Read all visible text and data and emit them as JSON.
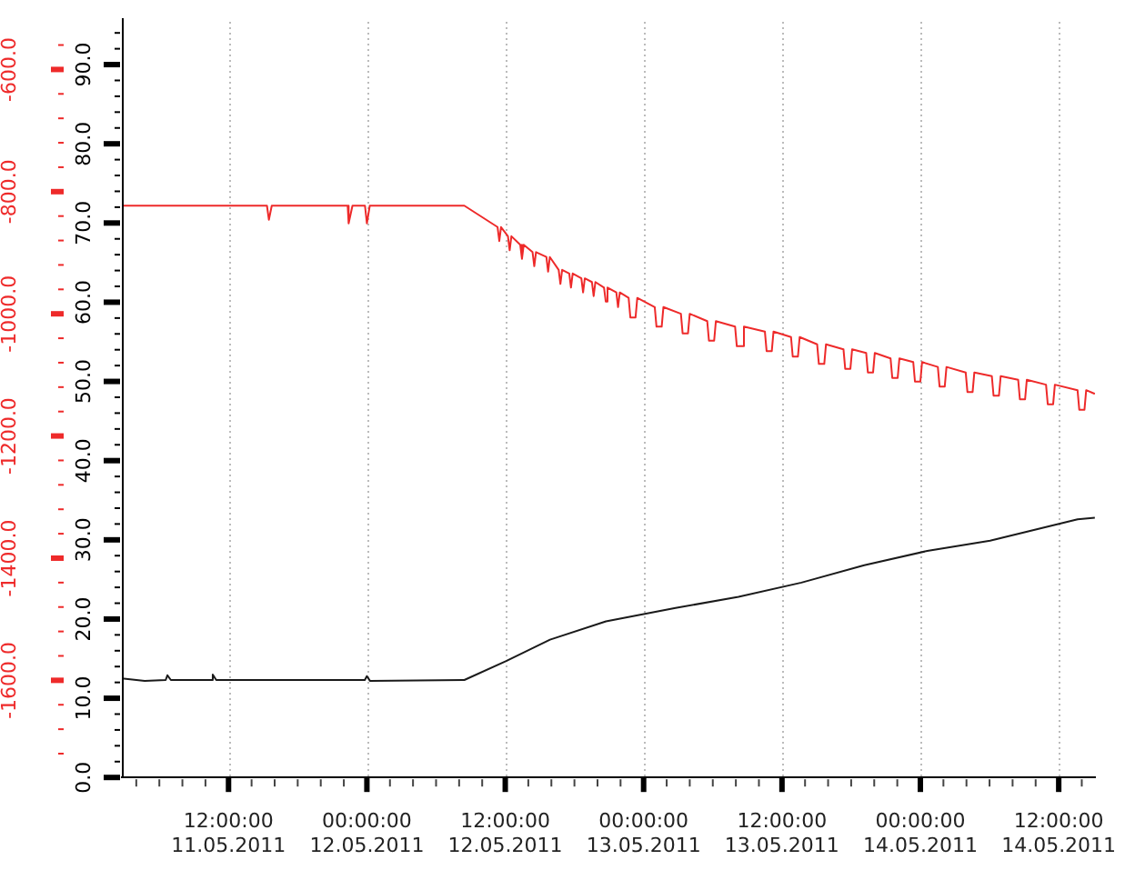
{
  "chart_data": {
    "type": "line",
    "xlim": [
      "2011-05-11T02:45",
      "2011-05-14T15:10"
    ],
    "xticks": [
      {
        "value": "2011-05-11T12:00",
        "label": "12:00:00 11.05.2011"
      },
      {
        "value": "2011-05-12T00:00",
        "label": "00:00:00 12.05.2011"
      },
      {
        "value": "2011-05-12T12:00",
        "label": "12:00:00 12.05.2011"
      },
      {
        "value": "2011-05-13T00:00",
        "label": "00:00:00 13.05.2011"
      },
      {
        "value": "2011-05-13T12:00",
        "label": "12:00:00 13.05.2011"
      },
      {
        "value": "2011-05-14T00:00",
        "label": "00:00:00 14.05.2011"
      },
      {
        "value": "2011-05-14T12:00",
        "label": "12:00:00 14.05.2011"
      }
    ],
    "ylim": [
      0,
      95.4
    ],
    "yticks": [
      {
        "value": 0,
        "label": "0.0"
      },
      {
        "value": 10,
        "label": "10.0"
      },
      {
        "value": 20,
        "label": "20.0"
      },
      {
        "value": 30,
        "label": "30.0"
      },
      {
        "value": 40,
        "label": "40.0"
      },
      {
        "value": 50,
        "label": "50.0"
      },
      {
        "value": 60,
        "label": "60.0"
      },
      {
        "value": 70,
        "label": "70.0"
      },
      {
        "value": 80,
        "label": "80.0"
      },
      {
        "value": 90,
        "label": "90.0"
      }
    ],
    "y2lim": [
      -1759,
      -522
    ],
    "y2ticks": [
      {
        "value": -1600,
        "label": "-1600.0"
      },
      {
        "value": -1400,
        "label": "-1400.0"
      },
      {
        "value": -1200,
        "label": "-1200.0"
      },
      {
        "value": -1000,
        "label": "-1000.0"
      },
      {
        "value": -800,
        "label": "-800.0"
      },
      {
        "value": -600,
        "label": "-600.0"
      }
    ],
    "grid": "x",
    "marker": "none",
    "line_style": "solid",
    "series": [
      {
        "color": "#ee2a2a",
        "axis": "y2",
        "x": [
          "2011-05-11T02:45",
          "2011-05-11T15:20",
          "2011-05-11T15:30",
          "2011-05-11T15:45",
          "2011-05-11T22:20",
          "2011-05-11T22:25",
          "2011-05-11T22:45",
          "2011-05-11T23:50",
          "2011-05-12T00:00",
          "2011-05-12T00:15",
          "2011-05-12T08:27",
          "2011-05-12T11:20",
          "2011-05-12T11:29",
          "2011-05-12T11:38",
          "2011-05-12T12:14",
          "2011-05-12T12:23",
          "2011-05-12T12:32",
          "2011-05-12T13:18",
          "2011-05-12T13:27",
          "2011-05-12T13:36",
          "2011-05-12T14:22",
          "2011-05-12T14:31",
          "2011-05-12T14:40",
          "2011-05-12T15:34",
          "2011-05-12T15:43",
          "2011-05-12T15:52",
          "2011-05-12T16:38",
          "2011-05-12T16:47",
          "2011-05-12T16:56",
          "2011-05-12T17:33",
          "2011-05-12T17:42",
          "2011-05-12T17:51",
          "2011-05-12T18:36",
          "2011-05-12T18:45",
          "2011-05-12T18:54",
          "2011-05-12T19:31",
          "2011-05-12T19:40",
          "2011-05-12T19:49",
          "2011-05-12T20:34",
          "2011-05-12T20:43",
          "2011-05-12T20:52",
          "2011-05-12T21:38",
          "2011-05-12T21:47",
          "2011-05-12T21:56",
          "2011-05-12T22:42",
          "2011-05-12T22:51",
          "2011-05-12T23:18",
          "2011-05-12T23:27",
          "2011-05-13T00:58",
          "2011-05-13T01:07",
          "2011-05-13T01:34",
          "2011-05-13T01:43",
          "2011-05-13T03:14",
          "2011-05-13T03:23",
          "2011-05-13T03:51",
          "2011-05-13T04:00",
          "2011-05-13T05:31",
          "2011-05-13T05:40",
          "2011-05-13T06:07",
          "2011-05-13T06:16",
          "2011-05-13T07:56",
          "2011-05-13T08:05",
          "2011-05-13T08:33",
          "2011-05-13T08:42",
          "2011-05-13T10:31",
          "2011-05-13T10:40",
          "2011-05-13T11:07",
          "2011-05-13T11:16",
          "2011-05-13T12:47",
          "2011-05-13T12:56",
          "2011-05-13T13:23",
          "2011-05-13T13:32",
          "2011-05-13T15:03",
          "2011-05-13T15:12",
          "2011-05-13T15:40",
          "2011-05-13T15:49",
          "2011-05-13T17:20",
          "2011-05-13T17:29",
          "2011-05-13T17:56",
          "2011-05-13T18:05",
          "2011-05-13T19:18",
          "2011-05-13T19:27",
          "2011-05-13T19:54",
          "2011-05-13T20:03",
          "2011-05-13T21:25",
          "2011-05-13T21:34",
          "2011-05-13T22:02",
          "2011-05-13T22:11",
          "2011-05-13T23:23",
          "2011-05-13T23:32",
          "2011-05-14T00:00",
          "2011-05-14T00:09",
          "2011-05-14T01:31",
          "2011-05-14T01:40",
          "2011-05-14T02:07",
          "2011-05-14T02:16",
          "2011-05-14T03:56",
          "2011-05-14T04:05",
          "2011-05-14T04:32",
          "2011-05-14T04:41",
          "2011-05-14T06:12",
          "2011-05-14T06:21",
          "2011-05-14T06:49",
          "2011-05-14T06:58",
          "2011-05-14T08:29",
          "2011-05-14T08:38",
          "2011-05-14T09:05",
          "2011-05-14T09:14",
          "2011-05-14T10:54",
          "2011-05-14T11:03",
          "2011-05-14T11:31",
          "2011-05-14T11:40",
          "2011-05-14T13:38",
          "2011-05-14T13:47",
          "2011-05-14T14:14",
          "2011-05-14T14:23",
          "2011-05-14T15:08"
        ],
        "values": [
          -823,
          -823,
          -846,
          -823,
          -823,
          -852,
          -823,
          -823,
          -852,
          -823,
          -823,
          -858,
          -881,
          -858,
          -873,
          -896,
          -873,
          -887,
          -910,
          -887,
          -899,
          -922,
          -899,
          -907,
          -931,
          -907,
          -928,
          -951,
          -928,
          -934,
          -957,
          -934,
          -942,
          -965,
          -942,
          -948,
          -971,
          -948,
          -957,
          -980,
          -957,
          -965,
          -989,
          -965,
          -974,
          -1006,
          -1006,
          -974,
          -989,
          -1021,
          -1021,
          -989,
          -1000,
          -1032,
          -1032,
          -1000,
          -1012,
          -1044,
          -1044,
          -1012,
          -1021,
          -1053,
          -1053,
          -1021,
          -1029,
          -1061,
          -1061,
          -1029,
          -1038,
          -1070,
          -1070,
          -1038,
          -1050,
          -1082,
          -1082,
          -1050,
          -1058,
          -1090,
          -1090,
          -1058,
          -1064,
          -1096,
          -1096,
          -1064,
          -1073,
          -1105,
          -1105,
          -1073,
          -1079,
          -1111,
          -1111,
          -1079,
          -1087,
          -1119,
          -1119,
          -1087,
          -1096,
          -1128,
          -1128,
          -1096,
          -1102,
          -1134,
          -1134,
          -1102,
          -1108,
          -1140,
          -1140,
          -1108,
          -1116,
          -1148,
          -1148,
          -1116,
          -1125,
          -1157,
          -1157,
          -1125,
          -1131
        ]
      },
      {
        "color": "#1a1a1a",
        "x": [
          "2011-05-11T02:45",
          "2011-05-11T04:44",
          "2011-05-11T06:33",
          "2011-05-11T06:42",
          "2011-05-11T07:00",
          "2011-05-11T10:29",
          "2011-05-11T10:38",
          "2011-05-11T10:56",
          "2011-05-11T23:49",
          "2011-05-12T00:00",
          "2011-05-12T00:16",
          "2011-05-12T08:27",
          "2011-05-12T12:05",
          "2011-05-12T15:53",
          "2011-05-12T20:44",
          "2011-05-13T02:46",
          "2011-05-13T08:14",
          "2011-05-13T13:41",
          "2011-05-13T19:08",
          "2011-05-14T00:36",
          "2011-05-14T06:03",
          "2011-05-14T13:38",
          "2011-05-14T15:08"
        ],
        "values": [
          12.5,
          12.2,
          12.3,
          12.9,
          12.3,
          12.3,
          13,
          12.3,
          12.3,
          12.8,
          12.2,
          12.3,
          14.7,
          17.4,
          19.7,
          21.4,
          22.8,
          24.6,
          26.8,
          28.6,
          29.9,
          32.6,
          32.8
        ]
      }
    ]
  }
}
